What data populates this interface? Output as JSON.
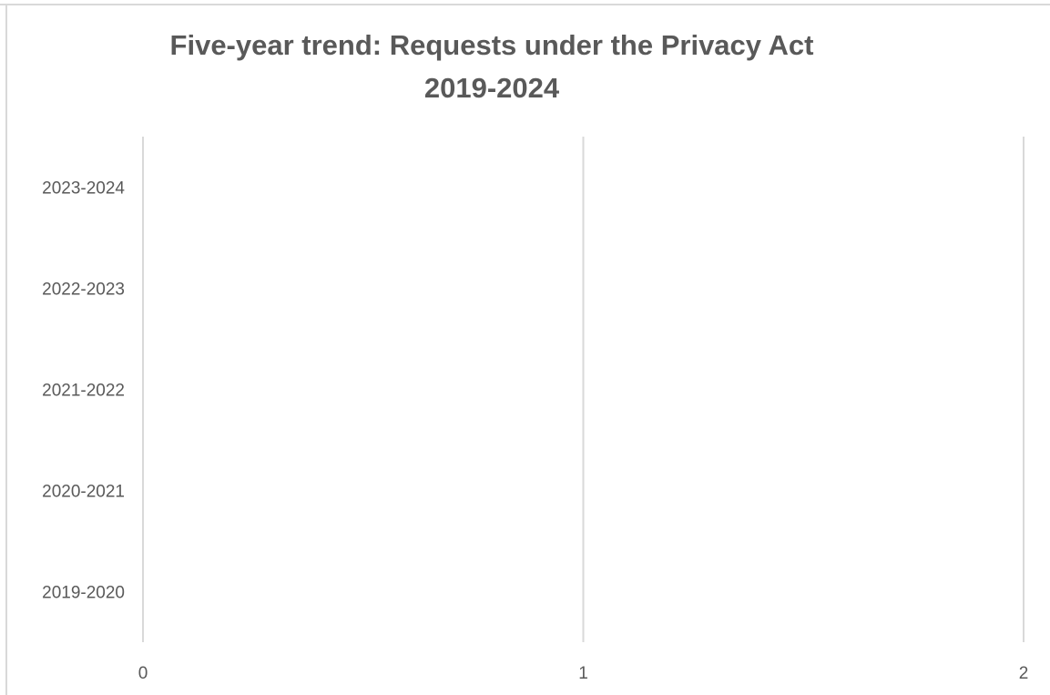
{
  "chart_data": {
    "type": "bar",
    "orientation": "horizontal",
    "title": "Five-year trend: Requests under the Privacy Act",
    "subtitle": "2019-2024",
    "categories": [
      "2019-2020",
      "2020-2021",
      "2021-2022",
      "2022-2023",
      "2023-2024"
    ],
    "series": [],
    "x_ticks": [
      "0",
      "1",
      "2"
    ],
    "xlim": [
      0,
      2
    ],
    "grid": true,
    "legend": "none",
    "colors": {
      "text": "#595959",
      "grid": "#d9d9d9",
      "background": "#ffffff"
    }
  }
}
